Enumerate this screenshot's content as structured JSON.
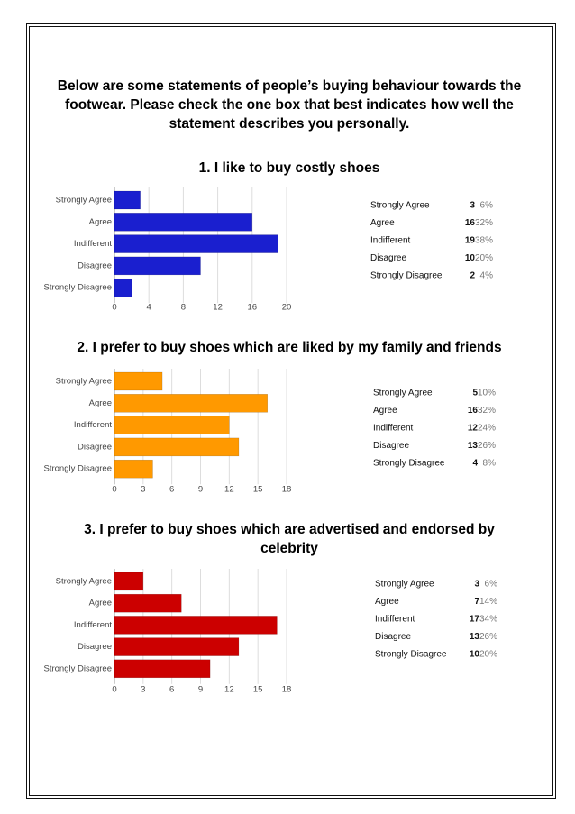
{
  "intro": "Below are some statements of people’s buying behaviour towards the footwear. Please check the one box that best indicates how well the statement describes you personally.",
  "chart_data": [
    {
      "type": "bar",
      "title": "1. I like to buy costly shoes",
      "categories": [
        "Strongly Agree",
        "Agree",
        "Indifferent",
        "Disagree",
        "Strongly Disagree"
      ],
      "values": [
        3,
        16,
        19,
        10,
        2
      ],
      "percent_labels": [
        "6%",
        "32%",
        "38%",
        "20%",
        "4%"
      ],
      "color": "#1a1fcf",
      "xlim": [
        0,
        20
      ],
      "xticks": [
        0,
        4,
        8,
        12,
        16,
        20
      ],
      "grid": true
    },
    {
      "type": "bar",
      "title": "2. I prefer to buy shoes which are liked by my family and friends",
      "categories": [
        "Strongly Agree",
        "Agree",
        "Indifferent",
        "Disagree",
        "Strongly Disagree"
      ],
      "values": [
        5,
        16,
        12,
        13,
        4
      ],
      "percent_labels": [
        "10%",
        "32%",
        "24%",
        "26%",
        "8%"
      ],
      "color": "#ff9900",
      "xlim": [
        0,
        18
      ],
      "xticks": [
        0,
        3,
        6,
        9,
        12,
        15,
        18
      ],
      "grid": true
    },
    {
      "type": "bar",
      "title": "3. I prefer to buy shoes which are advertised and endorsed by celebrity",
      "categories": [
        "Strongly Agree",
        "Agree",
        "Indifferent",
        "Disagree",
        "Strongly Disagree"
      ],
      "values": [
        3,
        7,
        17,
        13,
        10
      ],
      "percent_labels": [
        "6%",
        "14%",
        "34%",
        "26%",
        "20%"
      ],
      "color": "#cc0000",
      "xlim": [
        0,
        18
      ],
      "xticks": [
        0,
        3,
        6,
        9,
        12,
        15,
        18
      ],
      "grid": true
    }
  ]
}
